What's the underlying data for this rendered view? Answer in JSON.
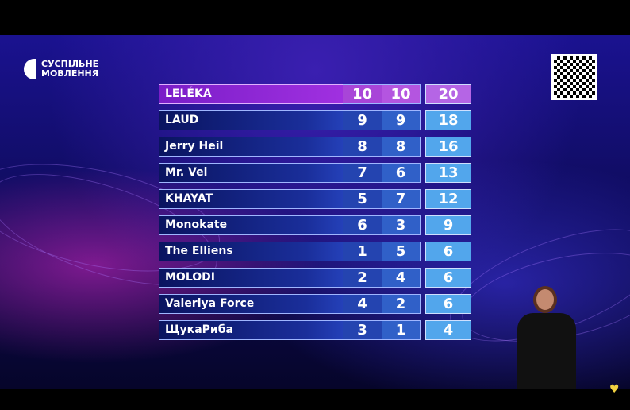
{
  "broadcaster": {
    "logo_line1": "СУСПІЛЬНЕ",
    "logo_line2": "МОВЛЕННЯ"
  },
  "scoreboard": {
    "rows": [
      {
        "name": "LELÉKA",
        "score1": "10",
        "score2": "10",
        "total": "20",
        "leader": true
      },
      {
        "name": "LAUD",
        "score1": "9",
        "score2": "9",
        "total": "18"
      },
      {
        "name": "Jerry Heil",
        "score1": "8",
        "score2": "8",
        "total": "16"
      },
      {
        "name": "Mr. Vel",
        "score1": "7",
        "score2": "6",
        "total": "13"
      },
      {
        "name": "KHAYAT",
        "score1": "5",
        "score2": "7",
        "total": "12"
      },
      {
        "name": "Monokate",
        "score1": "6",
        "score2": "3",
        "total": "9"
      },
      {
        "name": "The Elliens",
        "score1": "1",
        "score2": "5",
        "total": "6"
      },
      {
        "name": "MOLODI",
        "score1": "2",
        "score2": "4",
        "total": "6"
      },
      {
        "name": "Valeriya Force",
        "score1": "4",
        "score2": "2",
        "total": "6"
      },
      {
        "name": "ЩукаРиба",
        "score1": "3",
        "score2": "1",
        "total": "4"
      }
    ]
  },
  "colors": {
    "leader": "#8a2ad0",
    "row": "#1a2e9a",
    "total": "#52a6ec"
  },
  "icons": {
    "qr": "qr-code-icon",
    "heart": "eurovision-heart-icon"
  }
}
